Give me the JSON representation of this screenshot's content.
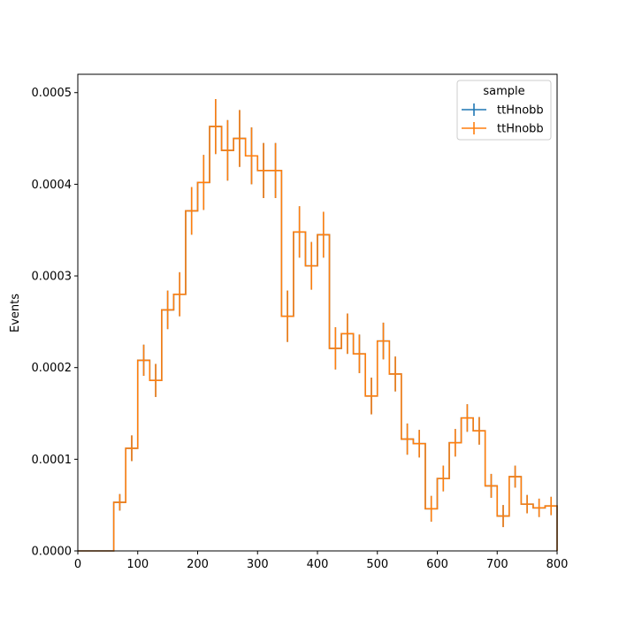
{
  "chart_data": {
    "type": "histogram-step",
    "title": "",
    "xlabel": "",
    "ylabel": "Events",
    "xlim": [
      0,
      800
    ],
    "ylim": [
      0,
      0.00052
    ],
    "x_ticks": [
      0,
      100,
      200,
      300,
      400,
      500,
      600,
      700,
      800
    ],
    "y_ticks": [
      0,
      0.0001,
      0.0002,
      0.0003,
      0.0004,
      0.0005
    ],
    "x_tick_labels": [
      "0",
      "100",
      "200",
      "300",
      "400",
      "500",
      "600",
      "700",
      "800"
    ],
    "y_tick_labels": [
      "0.0000",
      "0.0001",
      "0.0002",
      "0.0003",
      "0.0004",
      "0.0005"
    ],
    "grid": false,
    "legend": {
      "title": "sample",
      "placement": "top-right",
      "entries": [
        "ttHnobb",
        "ttHnobb"
      ]
    },
    "bin_edges": [
      0,
      20,
      40,
      60,
      80,
      100,
      120,
      140,
      160,
      180,
      200,
      220,
      240,
      260,
      280,
      300,
      320,
      340,
      360,
      380,
      400,
      420,
      440,
      460,
      480,
      500,
      520,
      540,
      560,
      580,
      600,
      620,
      640,
      660,
      680,
      700,
      720,
      740,
      760,
      780,
      800
    ],
    "series": [
      {
        "name": "ttHnobb",
        "color": "#1f77b4",
        "values": [
          0,
          0,
          0,
          5.3e-05,
          0.000112,
          0.000208,
          0.000186,
          0.000263,
          0.00028,
          0.000371,
          0.000402,
          0.000463,
          0.000437,
          0.00045,
          0.000431,
          0.000415,
          0.000415,
          0.000256,
          0.000348,
          0.000311,
          0.000345,
          0.000221,
          0.000237,
          0.000215,
          0.000169,
          0.000229,
          0.000193,
          0.000122,
          0.000117,
          4.6e-05,
          7.9e-05,
          0.000118,
          0.000145,
          0.000131,
          7.1e-05,
          3.8e-05,
          8.1e-05,
          5.1e-05,
          4.7e-05,
          4.9e-05
        ],
        "errors": [
          0,
          0,
          0,
          9e-06,
          1.4e-05,
          1.7e-05,
          1.8e-05,
          2.1e-05,
          2.4e-05,
          2.6e-05,
          3e-05,
          3e-05,
          3.3e-05,
          3.1e-05,
          3.1e-05,
          3e-05,
          3e-05,
          2.8e-05,
          2.8e-05,
          2.6e-05,
          2.5e-05,
          2.3e-05,
          2.2e-05,
          2.1e-05,
          2e-05,
          2e-05,
          1.9e-05,
          1.7e-05,
          1.5e-05,
          1.4e-05,
          1.4e-05,
          1.5e-05,
          1.5e-05,
          1.5e-05,
          1.3e-05,
          1.2e-05,
          1.2e-05,
          1e-05,
          1e-05,
          1e-05
        ]
      },
      {
        "name": "ttHnobb",
        "color": "#ff7f0e",
        "values": [
          0,
          0,
          0,
          5.3e-05,
          0.000112,
          0.000208,
          0.000186,
          0.000263,
          0.00028,
          0.000371,
          0.000402,
          0.000463,
          0.000437,
          0.00045,
          0.000431,
          0.000415,
          0.000415,
          0.000256,
          0.000348,
          0.000311,
          0.000345,
          0.000221,
          0.000237,
          0.000215,
          0.000169,
          0.000229,
          0.000193,
          0.000122,
          0.000117,
          4.6e-05,
          7.9e-05,
          0.000118,
          0.000145,
          0.000131,
          7.1e-05,
          3.8e-05,
          8.1e-05,
          5.1e-05,
          4.7e-05,
          4.9e-05
        ],
        "errors": [
          0,
          0,
          0,
          9e-06,
          1.4e-05,
          1.7e-05,
          1.8e-05,
          2.1e-05,
          2.4e-05,
          2.6e-05,
          3e-05,
          3e-05,
          3.3e-05,
          3.1e-05,
          3.1e-05,
          3e-05,
          3e-05,
          2.8e-05,
          2.8e-05,
          2.6e-05,
          2.5e-05,
          2.3e-05,
          2.2e-05,
          2.1e-05,
          2e-05,
          2e-05,
          1.9e-05,
          1.7e-05,
          1.5e-05,
          1.4e-05,
          1.4e-05,
          1.5e-05,
          1.5e-05,
          1.5e-05,
          1.3e-05,
          1.2e-05,
          1.2e-05,
          1e-05,
          1e-05,
          1e-05
        ]
      }
    ]
  }
}
